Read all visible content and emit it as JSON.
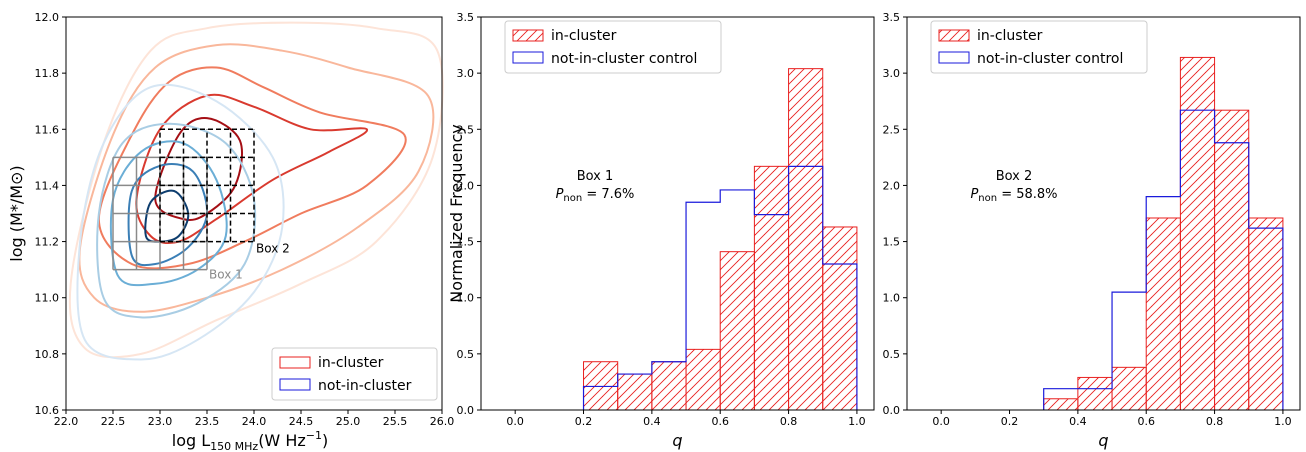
{
  "colors": {
    "in_cluster": "#e8201f",
    "control": "#1a1adb",
    "box1": "#8a8a8a",
    "box2": "#000000",
    "reds": [
      "#fde4d8",
      "#f9b79b",
      "#f07c5e",
      "#d93a2f",
      "#a50f15"
    ],
    "blues": [
      "#d6e6f4",
      "#a9cde4",
      "#6baed6",
      "#3b7fb6",
      "#0d3d6e"
    ]
  },
  "chart_data": [
    {
      "type": "contour",
      "xlabel_main": "log L",
      "xlabel_sub": "150 MHz",
      "xlabel_unit": "(W Hz",
      "xlabel_exp": "−1",
      "xlabel_close": ")",
      "ylabel": "log (M*/M⊙)",
      "xlim": [
        22.0,
        26.0
      ],
      "ylim": [
        10.6,
        12.0
      ],
      "xticks": [
        "22.0",
        "22.5",
        "23.0",
        "23.5",
        "24.0",
        "24.5",
        "25.0",
        "25.5",
        "26.0"
      ],
      "yticks": [
        "10.6",
        "10.8",
        "11.0",
        "11.2",
        "11.4",
        "11.6",
        "11.8",
        "12.0"
      ],
      "legend": [
        "in-cluster",
        "not-in-cluster"
      ],
      "box1_label": "Box 1",
      "box2_label": "Box 2",
      "box1": {
        "x": [
          22.5,
          23.5
        ],
        "y": [
          11.1,
          11.5
        ]
      },
      "box2": {
        "x": [
          23.0,
          24.0
        ],
        "y": [
          11.2,
          11.6
        ]
      },
      "red_contours": [
        [
          [
            22.05,
            11.05
          ],
          [
            22.4,
            11.55
          ],
          [
            22.9,
            11.88
          ],
          [
            23.5,
            11.96
          ],
          [
            24.4,
            11.98
          ],
          [
            25.3,
            11.96
          ],
          [
            25.95,
            11.88
          ],
          [
            25.9,
            11.5
          ],
          [
            25.3,
            11.2
          ],
          [
            24.5,
            11.05
          ],
          [
            23.6,
            10.92
          ],
          [
            22.8,
            10.8
          ],
          [
            22.2,
            10.82
          ]
        ],
        [
          [
            22.15,
            11.18
          ],
          [
            22.5,
            11.58
          ],
          [
            22.95,
            11.82
          ],
          [
            23.6,
            11.9
          ],
          [
            24.3,
            11.88
          ],
          [
            25.0,
            11.82
          ],
          [
            25.85,
            11.72
          ],
          [
            25.75,
            11.45
          ],
          [
            25.1,
            11.25
          ],
          [
            24.3,
            11.1
          ],
          [
            23.5,
            11.0
          ],
          [
            22.8,
            10.95
          ],
          [
            22.3,
            11.0
          ]
        ],
        [
          [
            22.35,
            11.28
          ],
          [
            22.7,
            11.58
          ],
          [
            23.1,
            11.77
          ],
          [
            23.6,
            11.82
          ],
          [
            24.1,
            11.75
          ],
          [
            24.7,
            11.66
          ],
          [
            25.6,
            11.58
          ],
          [
            25.2,
            11.4
          ],
          [
            24.5,
            11.3
          ],
          [
            23.9,
            11.2
          ],
          [
            23.3,
            11.12
          ],
          [
            22.7,
            11.12
          ]
        ],
        [
          [
            22.75,
            11.35
          ],
          [
            23.0,
            11.6
          ],
          [
            23.5,
            11.72
          ],
          [
            24.0,
            11.68
          ],
          [
            24.6,
            11.6
          ],
          [
            25.2,
            11.6
          ],
          [
            24.8,
            11.52
          ],
          [
            24.2,
            11.42
          ],
          [
            23.6,
            11.28
          ],
          [
            23.2,
            11.2
          ],
          [
            22.9,
            11.22
          ]
        ],
        [
          [
            22.95,
            11.35
          ],
          [
            23.2,
            11.58
          ],
          [
            23.5,
            11.64
          ],
          [
            23.85,
            11.56
          ],
          [
            23.8,
            11.4
          ],
          [
            23.5,
            11.3
          ],
          [
            23.25,
            11.28
          ]
        ]
      ],
      "blue_contours": [
        [
          [
            22.2,
            10.85
          ],
          [
            22.15,
            11.2
          ],
          [
            22.4,
            11.55
          ],
          [
            22.9,
            11.75
          ],
          [
            23.6,
            11.7
          ],
          [
            24.2,
            11.5
          ],
          [
            24.3,
            11.25
          ],
          [
            24.0,
            11.02
          ],
          [
            23.4,
            10.85
          ],
          [
            22.8,
            10.78
          ]
        ],
        [
          [
            22.4,
            11.0
          ],
          [
            22.35,
            11.3
          ],
          [
            22.6,
            11.55
          ],
          [
            23.1,
            11.62
          ],
          [
            23.7,
            11.55
          ],
          [
            24.0,
            11.35
          ],
          [
            23.9,
            11.12
          ],
          [
            23.4,
            10.98
          ],
          [
            22.8,
            10.93
          ]
        ],
        [
          [
            22.55,
            11.08
          ],
          [
            22.5,
            11.35
          ],
          [
            22.8,
            11.52
          ],
          [
            23.25,
            11.55
          ],
          [
            23.6,
            11.42
          ],
          [
            23.7,
            11.22
          ],
          [
            23.4,
            11.1
          ],
          [
            22.95,
            11.05
          ]
        ],
        [
          [
            22.7,
            11.15
          ],
          [
            22.7,
            11.38
          ],
          [
            23.0,
            11.47
          ],
          [
            23.35,
            11.45
          ],
          [
            23.5,
            11.3
          ],
          [
            23.3,
            11.18
          ],
          [
            22.95,
            11.12
          ]
        ],
        [
          [
            22.85,
            11.22
          ],
          [
            22.9,
            11.34
          ],
          [
            23.15,
            11.38
          ],
          [
            23.3,
            11.3
          ],
          [
            23.2,
            11.22
          ],
          [
            23.0,
            11.2
          ]
        ]
      ]
    },
    {
      "type": "histogram",
      "annotation_title": "Box 1",
      "annotation_p_label": "P",
      "annotation_p_sub": "non",
      "annotation_p_value": " = 7.6%",
      "xlabel": "q",
      "ylabel": "Normalized Frequency",
      "xlim": [
        -0.1,
        1.05
      ],
      "ylim": [
        0,
        3.5
      ],
      "xticks": [
        "0.0",
        "0.2",
        "0.4",
        "0.6",
        "0.8",
        "1.0"
      ],
      "yticks": [
        "0.0",
        "0.5",
        "1.0",
        "1.5",
        "2.0",
        "2.5",
        "3.0",
        "3.5"
      ],
      "legend": [
        "in-cluster",
        "not-in-cluster control"
      ],
      "bin_edges": [
        0.2,
        0.3,
        0.4,
        0.5,
        0.6,
        0.7,
        0.8,
        0.9,
        1.0
      ],
      "series": [
        {
          "name": "in-cluster",
          "values": [
            0.43,
            0.32,
            0.43,
            0.54,
            1.41,
            2.17,
            3.04,
            1.63
          ]
        },
        {
          "name": "not-in-cluster control",
          "values": [
            0.21,
            0.32,
            0.43,
            1.85,
            1.96,
            1.74,
            2.17,
            1.3
          ]
        }
      ]
    },
    {
      "type": "histogram",
      "annotation_title": "Box 2",
      "annotation_p_label": "P",
      "annotation_p_sub": "non",
      "annotation_p_value": " = 58.8%",
      "xlabel": "q",
      "ylabel": "",
      "xlim": [
        -0.1,
        1.05
      ],
      "ylim": [
        0,
        3.5
      ],
      "xticks": [
        "0.0",
        "0.2",
        "0.4",
        "0.6",
        "0.8",
        "1.0"
      ],
      "yticks": [
        "0.0",
        "0.5",
        "1.0",
        "1.5",
        "2.0",
        "2.5",
        "3.0",
        "3.5"
      ],
      "legend": [
        "in-cluster",
        "not-in-cluster control"
      ],
      "bin_edges": [
        0.3,
        0.4,
        0.5,
        0.6,
        0.7,
        0.8,
        0.9,
        1.0
      ],
      "series": [
        {
          "name": "in-cluster",
          "values": [
            0.1,
            0.29,
            0.38,
            1.71,
            3.14,
            2.67,
            1.71
          ]
        },
        {
          "name": "not-in-cluster control",
          "values": [
            0.19,
            0.19,
            1.05,
            1.9,
            2.67,
            2.38,
            1.62
          ]
        }
      ]
    }
  ]
}
